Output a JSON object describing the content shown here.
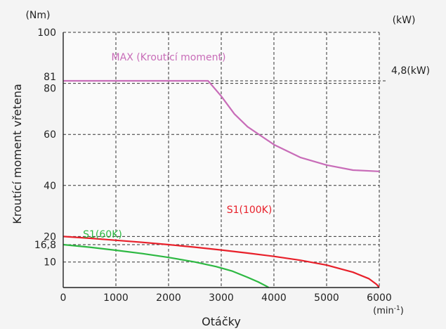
{
  "chart_data": {
    "type": "line",
    "xlabel": "Otáčky",
    "ylabel": "Kroutící moment vřetena",
    "x_unit": "(min-1)",
    "y_unit_left": "(Nm)",
    "y_unit_right": "(kW)",
    "xlim": [
      0,
      6000
    ],
    "ylim": [
      0,
      100
    ],
    "x_ticks": [
      0,
      1000,
      2000,
      3000,
      4000,
      5000,
      6000
    ],
    "x_tick_labels": [
      "0",
      "1000",
      "2000",
      "3000",
      "4000",
      "5000",
      "6000"
    ],
    "y_ticks": [
      10,
      16.8,
      20,
      40,
      60,
      80,
      81,
      100
    ],
    "y_tick_labels": [
      "10",
      "16,8",
      "20",
      "40",
      "60",
      "80",
      "81",
      "100"
    ],
    "grid": true,
    "right_annotation": {
      "y": 81,
      "text": "4,8(kW)"
    },
    "series": [
      {
        "name": "MAX (Kroutící moment)",
        "color": "#c86cb8",
        "x": [
          0,
          2750,
          3000,
          3250,
          3500,
          4000,
          4500,
          5000,
          5500,
          6000
        ],
        "y": [
          81,
          81,
          75,
          68,
          63,
          56,
          51,
          48,
          46,
          45.5
        ]
      },
      {
        "name": "S1(100K)",
        "color": "#e8202a",
        "x": [
          0,
          500,
          1000,
          1500,
          2000,
          2500,
          3000,
          3500,
          4000,
          4500,
          5000,
          5500,
          5800,
          5950,
          6000
        ],
        "y": [
          20,
          19.3,
          18.5,
          17.7,
          16.8,
          15.8,
          14.7,
          13.5,
          12.2,
          10.7,
          8.8,
          6.0,
          3.5,
          1.2,
          0
        ]
      },
      {
        "name": "S1(60K)",
        "color": "#2db842",
        "x": [
          0,
          500,
          1000,
          1500,
          2000,
          2500,
          2900,
          3200,
          3500,
          3700,
          3850,
          3900
        ],
        "y": [
          16.8,
          15.8,
          14.6,
          13.3,
          11.8,
          10.0,
          8.2,
          6.5,
          4.0,
          2.2,
          0.6,
          0
        ]
      }
    ]
  }
}
